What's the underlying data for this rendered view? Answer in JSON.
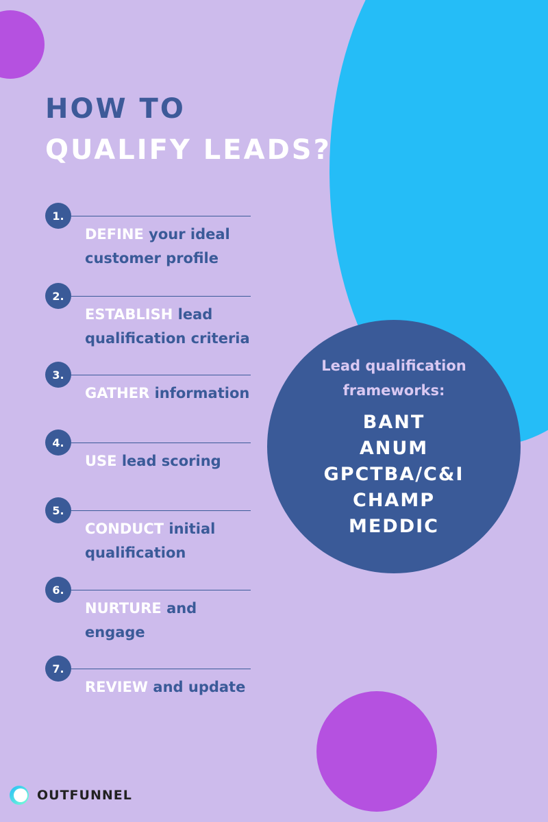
{
  "title": {
    "line1": "HOW TO",
    "line2": "QUALIFY LEADS?"
  },
  "steps": [
    {
      "number": "1.",
      "keyword": "DEFINE",
      "text": "your ideal customer profile"
    },
    {
      "number": "2.",
      "keyword": "ESTABLISH",
      "text": "lead qualification criteria"
    },
    {
      "number": "3.",
      "keyword": "GATHER",
      "text": "information"
    },
    {
      "number": "4.",
      "keyword": "USE",
      "text": "lead scoring"
    },
    {
      "number": "5.",
      "keyword": "CONDUCT",
      "text": "initial qualification"
    },
    {
      "number": "6.",
      "keyword": "NURTURE",
      "text": "and engage"
    },
    {
      "number": "7.",
      "keyword": "REVIEW",
      "text": "and update"
    }
  ],
  "frameworks": {
    "heading": "Lead qualification frameworks:",
    "items": [
      "BANT",
      "ANUM",
      "GPCTBA/C&I",
      "CHAMP",
      "MEDDIC"
    ]
  },
  "brand": "OUTFUNNEL"
}
